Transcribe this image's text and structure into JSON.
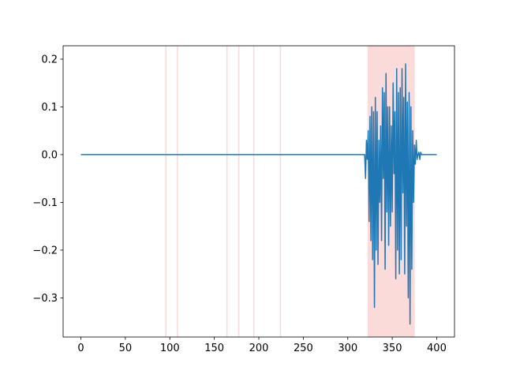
{
  "chart_data": {
    "type": "line",
    "x": [
      0,
      319,
      320,
      321,
      322,
      323,
      324,
      325,
      326,
      327,
      328,
      329,
      330,
      331,
      332,
      333,
      334,
      335,
      336,
      337,
      338,
      339,
      340,
      341,
      342,
      343,
      344,
      345,
      346,
      347,
      348,
      349,
      350,
      351,
      352,
      353,
      354,
      355,
      356,
      357,
      358,
      359,
      360,
      361,
      362,
      363,
      364,
      365,
      366,
      367,
      368,
      369,
      370,
      371,
      372,
      373,
      374,
      375,
      376,
      377,
      378,
      379,
      380,
      381,
      382,
      383,
      400
    ],
    "series": [
      {
        "color": "#1f77b4",
        "values": [
          0,
          0,
          -0.05,
          0.03,
          -0.01,
          0.05,
          -0.14,
          0.08,
          -0.18,
          0.1,
          -0.22,
          0.09,
          -0.32,
          0.12,
          -0.2,
          0.09,
          -0.23,
          0.03,
          -0.1,
          0.06,
          -0.18,
          0.14,
          -0.05,
          0.13,
          -0.24,
          0.17,
          -0.12,
          0.1,
          -0.19,
          0.1,
          -0.15,
          0.06,
          -0.12,
          0.15,
          -0.04,
          0.09,
          -0.26,
          0.18,
          -0.2,
          0.13,
          -0.25,
          0.14,
          -0.22,
          0.18,
          -0.08,
          0.12,
          -0.25,
          0.19,
          -0.15,
          0.11,
          -0.3,
          0.13,
          -0.355,
          0.1,
          -0.24,
          0.05,
          -0.1,
          0.02,
          -0.02,
          0.03,
          -0.01,
          0,
          0.005,
          -0.01,
          0.005,
          0,
          0
        ]
      }
    ],
    "spans": [
      [
        94.8,
        96.2
      ],
      [
        107.8,
        109.2
      ],
      [
        163.5,
        164.9
      ],
      [
        176.8,
        178.2
      ],
      [
        193.6,
        195.0
      ],
      [
        223.6,
        225.0
      ],
      [
        322.3,
        375.3
      ],
      [
        354.6,
        355.4
      ]
    ],
    "span_color": "#fbdada",
    "xlim": [
      -20,
      420
    ],
    "ylim": [
      -0.382,
      0.228
    ],
    "xticks": [
      0,
      50,
      100,
      150,
      200,
      250,
      300,
      350,
      400
    ],
    "yticks": [
      {
        "value": -0.3,
        "label": "−0.3"
      },
      {
        "value": -0.2,
        "label": "−0.2"
      },
      {
        "value": -0.1,
        "label": "−0.1"
      },
      {
        "value": 0,
        "label": "0.0"
      },
      0.1,
      0.2
    ]
  }
}
